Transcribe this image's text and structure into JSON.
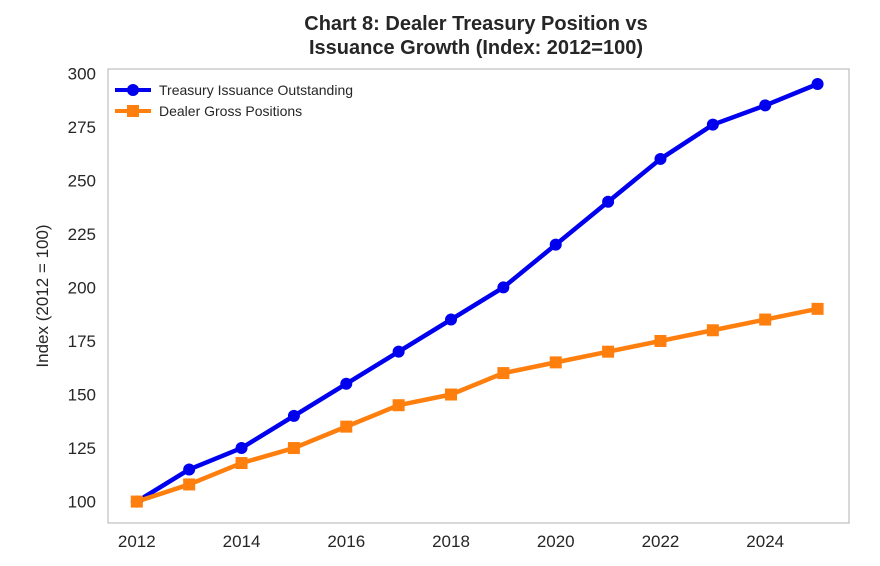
{
  "chart_data": {
    "type": "line",
    "title_lines": [
      "Chart 8: Dealer Treasury Position vs",
      "Issuance Growth (Index: 2012=100)"
    ],
    "xlabel": "",
    "ylabel": "Index (2012 = 100)",
    "x": [
      2012,
      2013,
      2014,
      2015,
      2016,
      2017,
      2018,
      2019,
      2020,
      2021,
      2022,
      2023,
      2024,
      2025
    ],
    "xlim": [
      2011.45,
      2025.6
    ],
    "ylim": [
      90,
      302
    ],
    "xticks": [
      2012,
      2014,
      2016,
      2018,
      2020,
      2022,
      2024
    ],
    "yticks": [
      100,
      125,
      150,
      175,
      200,
      225,
      250,
      275,
      300
    ],
    "grid": false,
    "legend_position": "top-left",
    "series": [
      {
        "name": "Treasury Issuance Outstanding",
        "color": "#0000ee",
        "marker": "circle",
        "values": [
          100,
          115,
          125,
          140,
          155,
          170,
          185,
          200,
          220,
          240,
          260,
          276,
          285,
          295
        ]
      },
      {
        "name": "Dealer Gross Positions",
        "color": "#ff7f0e",
        "marker": "square",
        "values": [
          100,
          108,
          118,
          125,
          135,
          145,
          150,
          160,
          165,
          170,
          175,
          180,
          185,
          190
        ]
      }
    ]
  }
}
